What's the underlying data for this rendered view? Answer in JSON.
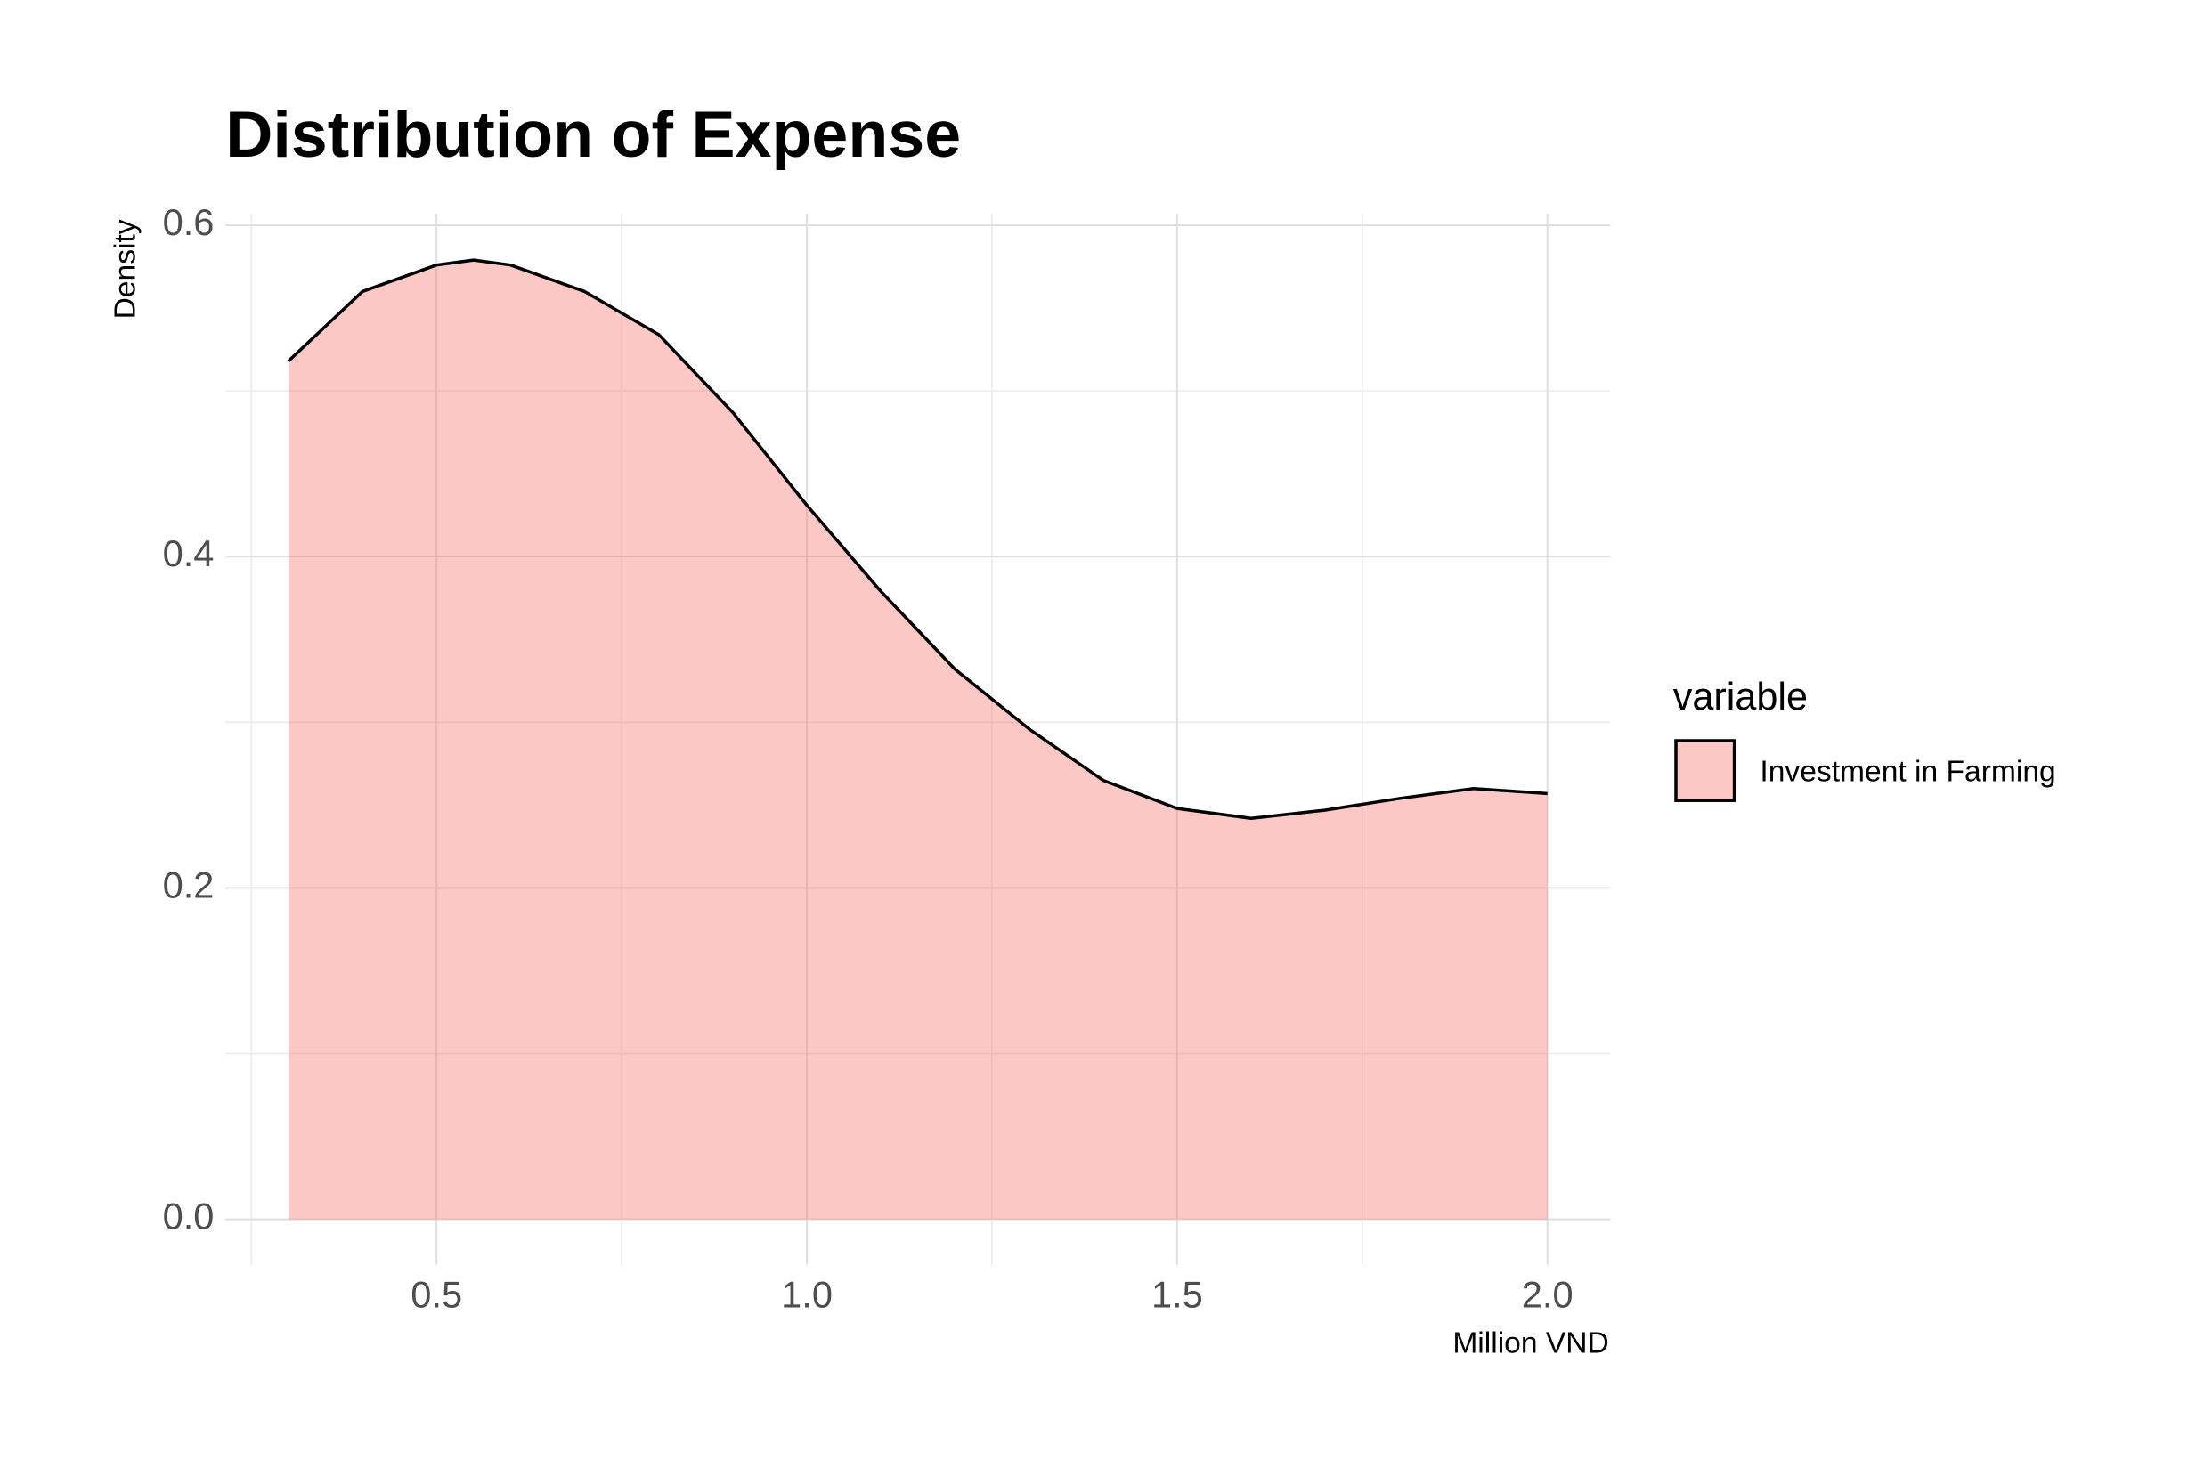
{
  "chart_data": {
    "type": "area",
    "title": "Distribution of Expense",
    "x_label": "Million VND",
    "y_label": "Density",
    "legend_title": "variable",
    "x": [
      0.3,
      0.4,
      0.5,
      0.55,
      0.6,
      0.7,
      0.8,
      0.9,
      1.0,
      1.1,
      1.2,
      1.3,
      1.4,
      1.5,
      1.6,
      1.7,
      1.8,
      1.9,
      2.0
    ],
    "series": [
      {
        "name": "Investment in Farming",
        "color": "#f8766d",
        "values": [
          0.518,
          0.56,
          0.576,
          0.579,
          0.576,
          0.56,
          0.534,
          0.487,
          0.431,
          0.379,
          0.332,
          0.296,
          0.265,
          0.248,
          0.242,
          0.247,
          0.254,
          0.26,
          0.257
        ]
      }
    ],
    "fill_opacity": 0.4,
    "line_color": "#000000",
    "xlim": [
      0.215,
      2.085
    ],
    "ylim": [
      -0.0275,
      0.607
    ],
    "xticks": [
      {
        "value": 0.5,
        "label": "0.5"
      },
      {
        "value": 1.0,
        "label": "1.0"
      },
      {
        "value": 1.5,
        "label": "1.5"
      },
      {
        "value": 2.0,
        "label": "2.0"
      }
    ],
    "yticks": [
      {
        "value": 0.0,
        "label": "0.0"
      },
      {
        "value": 0.2,
        "label": "0.2"
      },
      {
        "value": 0.4,
        "label": "0.4"
      },
      {
        "value": 0.6,
        "label": "0.6"
      }
    ],
    "x_minor_grid": [
      0.25,
      0.75,
      1.25,
      1.75
    ],
    "y_minor_grid": [
      0.1,
      0.3,
      0.5
    ],
    "grid": true,
    "legend_position": "right"
  }
}
